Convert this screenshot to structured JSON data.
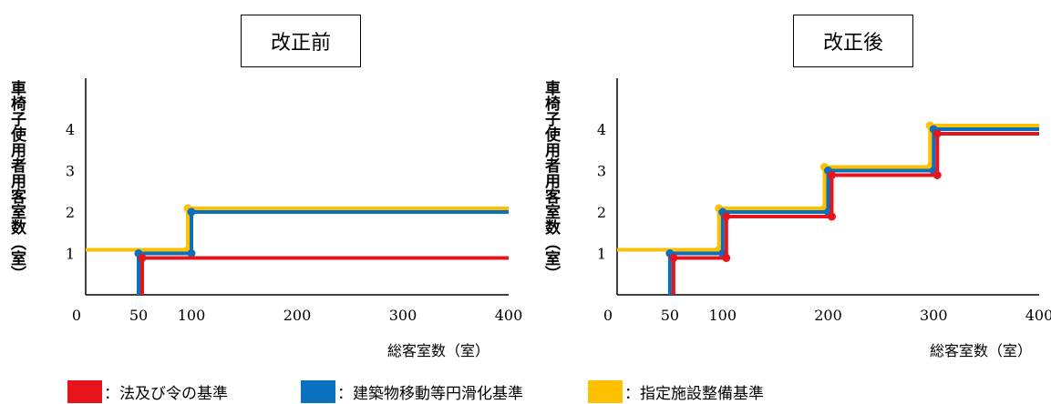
{
  "chart_data": [
    {
      "type": "line",
      "step": true,
      "title": "改正前",
      "ylabel": "車椅子使用者用客室数（室）",
      "xlabel": "総客室数（室）",
      "xlim": [
        0,
        400
      ],
      "ylim": [
        0,
        5
      ],
      "xticks": [
        "0",
        "50",
        "100",
        "200",
        "300",
        "400"
      ],
      "xtick_values": [
        0,
        50,
        100,
        200,
        300,
        400
      ],
      "yticks": [
        "1",
        "2",
        "3",
        "4"
      ],
      "ytick_values": [
        1,
        2,
        3,
        4
      ],
      "series": [
        {
          "name": "法及び令の基準",
          "color": "#e8141c",
          "points": [
            [
              50,
              0
            ],
            [
              50,
              1
            ],
            [
              400,
              1
            ]
          ]
        },
        {
          "name": "建築物移動等円滑化基準",
          "color": "#0a6fbd",
          "points": [
            [
              50,
              0
            ],
            [
              50,
              1
            ],
            [
              100,
              1
            ],
            [
              100,
              2
            ],
            [
              400,
              2
            ]
          ]
        },
        {
          "name": "指定施設整備基準",
          "color": "#ffc000",
          "points": [
            [
              0,
              1
            ],
            [
              100,
              1
            ],
            [
              100,
              2
            ],
            [
              400,
              2
            ]
          ]
        }
      ]
    },
    {
      "type": "line",
      "step": true,
      "title": "改正後",
      "ylabel": "車椅子使用者用客室数（室）",
      "xlabel": "総客室数（室）",
      "xlim": [
        0,
        400
      ],
      "ylim": [
        0,
        5
      ],
      "xticks": [
        "0",
        "50",
        "100",
        "200",
        "300",
        "400"
      ],
      "xtick_values": [
        0,
        50,
        100,
        200,
        300,
        400
      ],
      "yticks": [
        "1",
        "2",
        "3",
        "4"
      ],
      "ytick_values": [
        1,
        2,
        3,
        4
      ],
      "series": [
        {
          "name": "法及び令の基準",
          "color": "#e8141c",
          "points": [
            [
              50,
              0
            ],
            [
              50,
              1
            ],
            [
              100,
              1
            ],
            [
              100,
              2
            ],
            [
              200,
              2
            ],
            [
              200,
              3
            ],
            [
              300,
              3
            ],
            [
              300,
              4
            ],
            [
              400,
              4
            ]
          ]
        },
        {
          "name": "建築物移動等円滑化基準",
          "color": "#0a6fbd",
          "points": [
            [
              50,
              0
            ],
            [
              50,
              1
            ],
            [
              100,
              1
            ],
            [
              100,
              2
            ],
            [
              200,
              2
            ],
            [
              200,
              3
            ],
            [
              300,
              3
            ],
            [
              300,
              4
            ],
            [
              400,
              4
            ]
          ]
        },
        {
          "name": "指定施設整備基準",
          "color": "#ffc000",
          "points": [
            [
              0,
              1
            ],
            [
              100,
              1
            ],
            [
              100,
              2
            ],
            [
              200,
              2
            ],
            [
              200,
              3
            ],
            [
              300,
              3
            ],
            [
              300,
              4
            ],
            [
              400,
              4
            ]
          ]
        }
      ]
    }
  ],
  "legend": [
    {
      "label": "：法及び令の基準",
      "color": "#e8141c"
    },
    {
      "label": "：建築物移動等円滑化基準",
      "color": "#0a6fbd"
    },
    {
      "label": "：指定施設整備基準",
      "color": "#ffc000"
    }
  ]
}
